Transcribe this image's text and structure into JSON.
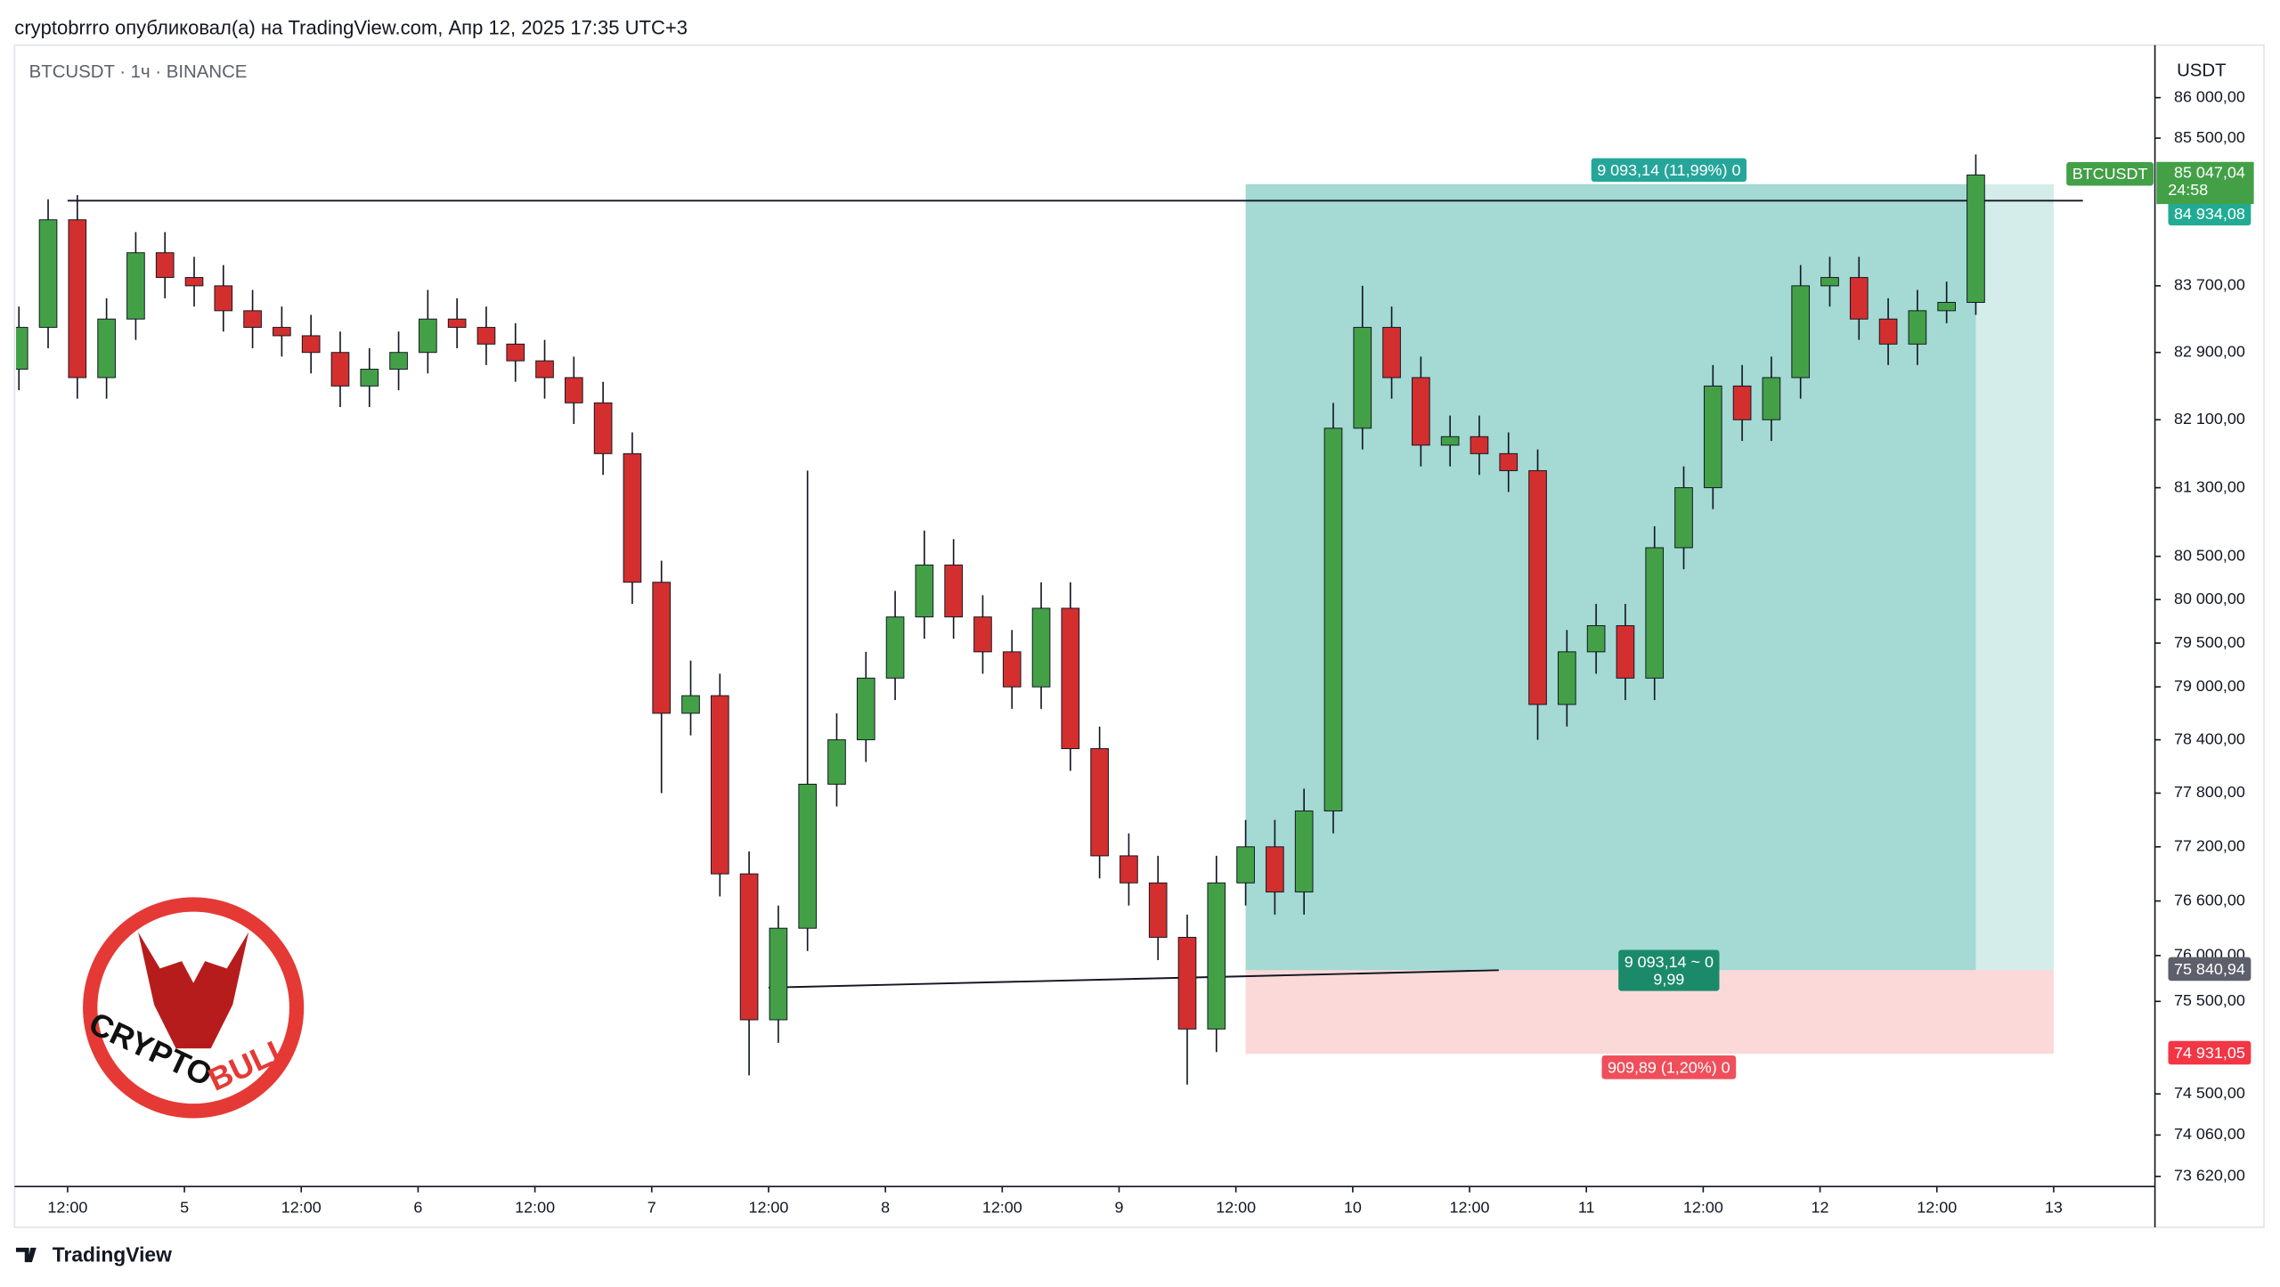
{
  "header": "cryptobrrro опубликовал(а) на TradingView.com, Апр 12, 2025 17:35 UTC+3",
  "footer": "TradingView",
  "logo": {
    "line1": "CRYPTO",
    "line2": "BULL"
  },
  "chart_data": {
    "type": "candlestick",
    "title": "BTCUSDT · 1ч · BINANCE",
    "y_axis_label": "USDT",
    "log_scale": true,
    "grid": false,
    "up_color": "#43a047",
    "down_color": "#d32f2f",
    "x": [
      7,
      10,
      13,
      16,
      19,
      22,
      25,
      28,
      31,
      34,
      37,
      40,
      43,
      46,
      49,
      52,
      55,
      58,
      61,
      64,
      67,
      70,
      73,
      76,
      79,
      82,
      85,
      88,
      91,
      94,
      97,
      100,
      103,
      106,
      109,
      112,
      115,
      118,
      121,
      124,
      127,
      130,
      133,
      136,
      139,
      142,
      145,
      148,
      151,
      154,
      157,
      160,
      163,
      166,
      169,
      172,
      175,
      178,
      181,
      184,
      187,
      190,
      193,
      196,
      199,
      202,
      205,
      208
    ],
    "open": [
      82700,
      83200,
      84500,
      82600,
      83300,
      84100,
      83800,
      83700,
      83400,
      83200,
      83100,
      82900,
      82500,
      82700,
      82900,
      83300,
      83200,
      83000,
      82800,
      82600,
      82300,
      81700,
      80200,
      78700,
      78900,
      76900,
      75300,
      76300,
      77900,
      78400,
      79100,
      79800,
      80400,
      79800,
      79400,
      79000,
      79900,
      78300,
      77100,
      76800,
      76200,
      75200,
      76800,
      77200,
      76700,
      77600,
      82000,
      83200,
      82600,
      81800,
      81900,
      81700,
      81500,
      78800,
      79400,
      79700,
      79100,
      80600,
      81300,
      82500,
      82100,
      82600,
      83700,
      83800,
      83300,
      83000,
      83400,
      83500
    ],
    "high": [
      83450,
      84750,
      84800,
      83550,
      84350,
      84350,
      84050,
      83950,
      83650,
      83450,
      83350,
      83150,
      82950,
      83150,
      83650,
      83550,
      83450,
      83250,
      83050,
      82850,
      82550,
      81950,
      80450,
      79300,
      79150,
      77150,
      76550,
      81500,
      78700,
      79400,
      80100,
      80800,
      80700,
      80050,
      79650,
      80200,
      80200,
      78550,
      77350,
      77100,
      76450,
      77100,
      77500,
      77500,
      77850,
      82300,
      83700,
      83450,
      82850,
      82150,
      82150,
      81950,
      81750,
      79650,
      79950,
      79950,
      80850,
      81550,
      82750,
      82750,
      82850,
      83950,
      84050,
      84050,
      83550,
      83650,
      83750,
      85300
    ],
    "low": [
      82450,
      82950,
      82350,
      82350,
      83050,
      83550,
      83450,
      83150,
      82950,
      82850,
      82650,
      82250,
      82250,
      82450,
      82650,
      82950,
      82750,
      82550,
      82350,
      82050,
      81450,
      79950,
      77800,
      78450,
      76650,
      74700,
      75050,
      76050,
      77650,
      78150,
      78850,
      79550,
      79550,
      79150,
      78750,
      78750,
      78050,
      76850,
      76550,
      75950,
      74600,
      74950,
      76550,
      76450,
      76450,
      77350,
      81750,
      82350,
      81550,
      81550,
      81450,
      81250,
      78400,
      78550,
      79150,
      78850,
      78850,
      80350,
      81050,
      81850,
      81850,
      82350,
      83450,
      83050,
      82750,
      82750,
      83250,
      83350
    ],
    "close": [
      83200,
      84500,
      82600,
      83300,
      84100,
      83800,
      83700,
      83400,
      83200,
      83100,
      82900,
      82500,
      82700,
      82900,
      83300,
      83200,
      83000,
      82800,
      82600,
      82300,
      81700,
      80200,
      78700,
      78900,
      76900,
      75300,
      76300,
      77900,
      78400,
      79100,
      79800,
      80400,
      79800,
      79400,
      79000,
      79900,
      78300,
      77100,
      76800,
      76200,
      75200,
      76800,
      77200,
      76700,
      77600,
      82000,
      83200,
      82600,
      81800,
      81900,
      81700,
      81500,
      78800,
      79400,
      79700,
      79100,
      80600,
      81300,
      82500,
      82100,
      82600,
      83700,
      83800,
      83300,
      83000,
      83400,
      83500,
      85047.04
    ],
    "xlim": [
      6.7,
      226.4
    ],
    "xticks": [
      {
        "value": 12,
        "label": "12:00"
      },
      {
        "value": 24,
        "label": "5"
      },
      {
        "value": 36,
        "label": "12:00"
      },
      {
        "value": 48,
        "label": "6"
      },
      {
        "value": 60,
        "label": "12:00"
      },
      {
        "value": 72,
        "label": "7"
      },
      {
        "value": 84,
        "label": "12:00"
      },
      {
        "value": 96,
        "label": "8"
      },
      {
        "value": 108,
        "label": "12:00"
      },
      {
        "value": 120,
        "label": "9"
      },
      {
        "value": 132,
        "label": "12:00"
      },
      {
        "value": 144,
        "label": "10"
      },
      {
        "value": 156,
        "label": "12:00"
      },
      {
        "value": 168,
        "label": "11"
      },
      {
        "value": 180,
        "label": "12:00"
      },
      {
        "value": 192,
        "label": "12"
      },
      {
        "value": 204,
        "label": "12:00"
      },
      {
        "value": 216,
        "label": "13"
      }
    ],
    "ylim": [
      73512,
      86654
    ],
    "yticks": [
      {
        "value": 86000,
        "label": "86 000,00"
      },
      {
        "value": 85500,
        "label": "85 500,00"
      },
      {
        "value": 83700,
        "label": "83 700,00"
      },
      {
        "value": 82900,
        "label": "82 900,00"
      },
      {
        "value": 82100,
        "label": "82 100,00"
      },
      {
        "value": 81300,
        "label": "81 300,00"
      },
      {
        "value": 80500,
        "label": "80 500,00"
      },
      {
        "value": 80000,
        "label": "80 000,00"
      },
      {
        "value": 79500,
        "label": "79 500,00"
      },
      {
        "value": 79000,
        "label": "79 000,00"
      },
      {
        "value": 78400,
        "label": "78 400,00"
      },
      {
        "value": 77800,
        "label": "77 800,00"
      },
      {
        "value": 77200,
        "label": "77 200,00"
      },
      {
        "value": 76600,
        "label": "76 600,00"
      },
      {
        "value": 76000,
        "label": "76 000,00"
      },
      {
        "value": 75500,
        "label": "75 500,00"
      },
      {
        "value": 74500,
        "label": "74 500,00"
      },
      {
        "value": 74060,
        "label": "74 060,00"
      },
      {
        "value": 73620,
        "label": "73 620,00"
      }
    ],
    "position": {
      "x_start": 133,
      "x_end": 216,
      "entry": {
        "value": 75840.94,
        "label": "75 840,94"
      },
      "target": {
        "value": 84934.08,
        "label": "84 934,08"
      },
      "stop": {
        "value": 74931.05,
        "label": "74 931,05"
      },
      "profit_color": "#26a69a",
      "loss_color": "#ef5350",
      "target_text": "9 093,14 (11,99%) 0",
      "entry_text": "9 093,14 ~ 0",
      "ratio_text": "9,99",
      "stop_text": "909,89 (1,20%) 0"
    },
    "lines": [
      {
        "x": [
          12,
          219
        ],
        "y": [
          84733,
          84733
        ]
      },
      {
        "x": [
          84,
          159
        ],
        "y": [
          75650,
          75840
        ]
      }
    ],
    "last_price": {
      "symbol": "BTCUSDT",
      "value": 85047.04,
      "label": "85 047,04",
      "countdown": "24:58"
    }
  }
}
